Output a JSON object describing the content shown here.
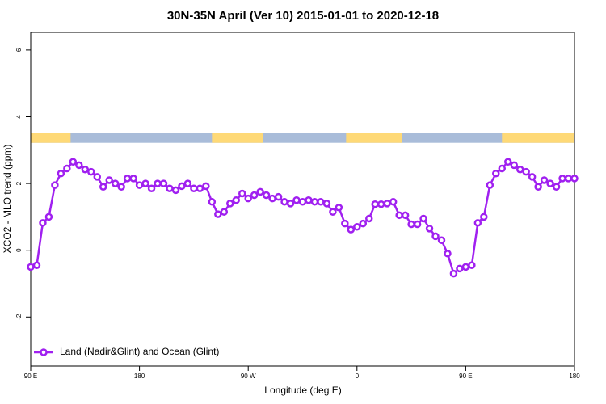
{
  "chart_data": {
    "type": "line",
    "title": "30N-35N April (Ver 10)   2015-01-01 to 2020-12-18",
    "x_label": "Longitude (deg E)",
    "y_label": "XCO2 - MLO trend (ppm)",
    "xlim": [
      90,
      540
    ],
    "ylim": [
      -3.47,
      6.53
    ],
    "xticks": [
      {
        "value": 90,
        "label": "90 E"
      },
      {
        "value": 180,
        "label": "180"
      },
      {
        "value": 270,
        "label": "90 W"
      },
      {
        "value": 360,
        "label": "0"
      },
      {
        "value": 450,
        "label": "90 E"
      },
      {
        "value": 540,
        "label": "180"
      }
    ],
    "yticks": [
      -2,
      0,
      2,
      4,
      6
    ],
    "legend": "bottom-left",
    "land_ocean_bar": {
      "y": [
        3.22,
        3.52
      ],
      "ocean_color": "#a9bcd9",
      "land_color": "#fed977",
      "land": [
        [
          90,
          123
        ],
        [
          240,
          282
        ],
        [
          351,
          397
        ],
        [
          480,
          540
        ]
      ]
    },
    "series": [
      {
        "name": "Land (Nadir&Glint) and Ocean (Glint)",
        "color": "#a020f0",
        "x": [
          90,
          95,
          100,
          105,
          110,
          115,
          120,
          125,
          130,
          135,
          140,
          145,
          150,
          155,
          160,
          165,
          170,
          175,
          180,
          185,
          190,
          195,
          200,
          205,
          210,
          215,
          220,
          225,
          230,
          235,
          240,
          245,
          250,
          255,
          260,
          265,
          270,
          275,
          280,
          285,
          290,
          295,
          300,
          305,
          310,
          315,
          320,
          325,
          330,
          335,
          340,
          345,
          350,
          355,
          360,
          365,
          370,
          375,
          380,
          385,
          390,
          395,
          400,
          405,
          410,
          415,
          420,
          425,
          430,
          435,
          440,
          445,
          450,
          455,
          460,
          465,
          470,
          475,
          480,
          485,
          490,
          495,
          500,
          505,
          510,
          515,
          520,
          525,
          530,
          535,
          540
        ],
        "values": [
          -0.5,
          -0.45,
          0.82,
          1.0,
          1.95,
          2.3,
          2.45,
          2.65,
          2.55,
          2.42,
          2.35,
          2.2,
          1.9,
          2.1,
          2.0,
          1.9,
          2.15,
          2.15,
          1.95,
          2.0,
          1.85,
          2.0,
          2.0,
          1.85,
          1.8,
          1.92,
          2.0,
          1.85,
          1.85,
          1.92,
          1.45,
          1.08,
          1.15,
          1.4,
          1.5,
          1.7,
          1.55,
          1.65,
          1.75,
          1.65,
          1.55,
          1.6,
          1.45,
          1.4,
          1.5,
          1.45,
          1.5,
          1.45,
          1.45,
          1.4,
          1.15,
          1.28,
          0.8,
          0.62,
          0.7,
          0.8,
          0.95,
          1.38,
          1.38,
          1.4,
          1.45,
          1.05,
          1.05,
          0.78,
          0.78,
          0.95,
          0.65,
          0.42,
          0.3,
          -0.1,
          -0.7,
          -0.55,
          -0.5,
          -0.45,
          0.82,
          1.0,
          1.95,
          2.3,
          2.45,
          2.65,
          2.55,
          2.42,
          2.35,
          2.2,
          1.9,
          2.1,
          2.0,
          1.9,
          2.15,
          2.15,
          2.15
        ]
      }
    ]
  }
}
